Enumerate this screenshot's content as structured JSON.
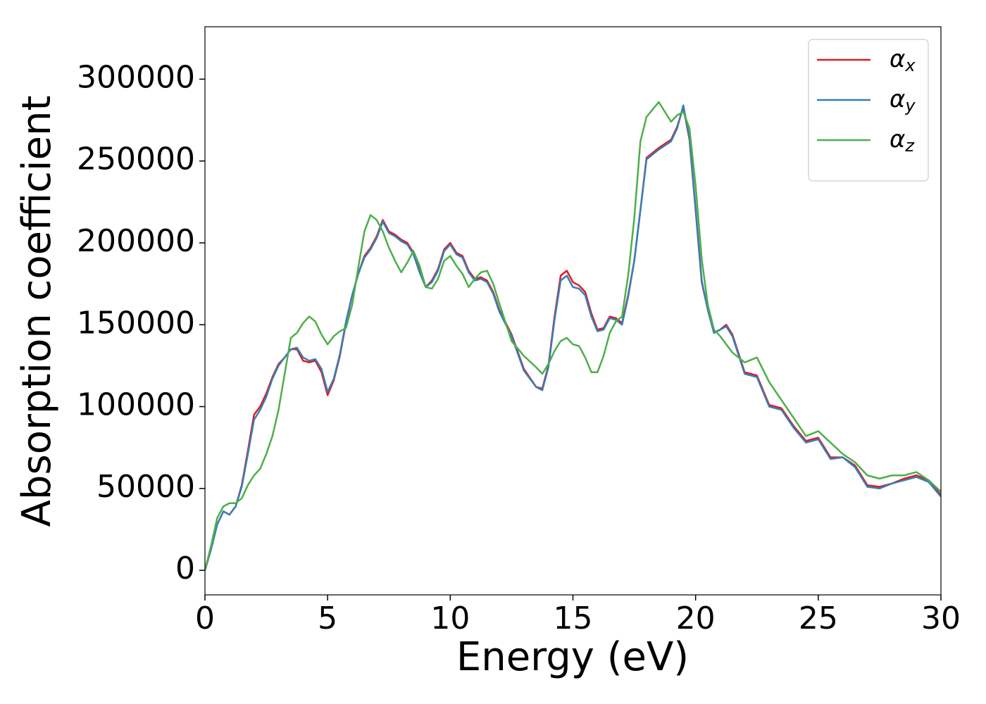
{
  "chart_data": {
    "type": "line",
    "xlabel": "Energy (eV)",
    "ylabel": "Absorption coefficient",
    "xlim": [
      0,
      30
    ],
    "ylim": [
      -15000,
      332000
    ],
    "xticks": [
      0,
      5,
      10,
      15,
      20,
      25,
      30
    ],
    "yticks": [
      0,
      50000,
      100000,
      150000,
      200000,
      250000,
      300000
    ],
    "grid": false,
    "legend": "upper right",
    "x": [
      0,
      0.25,
      0.5,
      0.75,
      1.0,
      1.25,
      1.5,
      1.75,
      2.0,
      2.25,
      2.5,
      2.75,
      3.0,
      3.25,
      3.5,
      3.75,
      4.0,
      4.25,
      4.5,
      4.75,
      5.0,
      5.25,
      5.5,
      5.75,
      6.0,
      6.25,
      6.5,
      6.75,
      7.0,
      7.25,
      7.5,
      7.75,
      8.0,
      8.25,
      8.5,
      8.75,
      9.0,
      9.25,
      9.5,
      9.75,
      10.0,
      10.25,
      10.5,
      10.75,
      11.0,
      11.25,
      11.5,
      11.75,
      12.0,
      12.5,
      13.0,
      13.5,
      13.75,
      14.0,
      14.25,
      14.5,
      14.75,
      15.0,
      15.25,
      15.5,
      15.75,
      16.0,
      16.25,
      16.5,
      16.75,
      17.0,
      17.25,
      17.5,
      17.75,
      18.0,
      18.5,
      19.0,
      19.25,
      19.5,
      19.75,
      20.0,
      20.25,
      20.5,
      20.75,
      21.0,
      21.25,
      21.5,
      22.0,
      22.5,
      23.0,
      23.5,
      24.0,
      24.5,
      25.0,
      25.5,
      26.0,
      26.5,
      27.0,
      27.5,
      28.0,
      28.5,
      29.0,
      29.5,
      30.0
    ],
    "series": [
      {
        "name": "αx",
        "color": "#e41a1c",
        "values": [
          0,
          13000,
          28000,
          36000,
          34000,
          39000,
          52000,
          73000,
          95000,
          100000,
          108000,
          118000,
          126000,
          130000,
          135000,
          135000,
          128000,
          127000,
          128000,
          121000,
          107000,
          116000,
          131000,
          151000,
          168000,
          181000,
          192000,
          197000,
          204000,
          214000,
          207000,
          205000,
          202000,
          200000,
          194000,
          183000,
          173000,
          177000,
          184000,
          196000,
          200000,
          194000,
          192000,
          183000,
          178000,
          179000,
          177000,
          170000,
          159000,
          144000,
          123000,
          112000,
          111000,
          125000,
          155000,
          180000,
          183000,
          176000,
          174000,
          170000,
          157000,
          147000,
          148000,
          155000,
          154000,
          151000,
          168000,
          189000,
          220000,
          252000,
          258000,
          263000,
          271000,
          283000,
          263000,
          220000,
          176000,
          159000,
          145000,
          147000,
          150000,
          144000,
          121000,
          119000,
          101000,
          99000,
          88000,
          79000,
          81000,
          69000,
          69000,
          64000,
          52000,
          51000,
          53000,
          56000,
          58000,
          55000,
          46000
        ]
      },
      {
        "name": "αy",
        "color": "#377eb8",
        "values": [
          0,
          13000,
          28000,
          36000,
          34000,
          39000,
          51000,
          71000,
          92000,
          98000,
          106000,
          117000,
          125000,
          130000,
          135000,
          136000,
          130000,
          128000,
          129000,
          123000,
          109000,
          117000,
          132000,
          152000,
          168000,
          181000,
          191000,
          196000,
          203000,
          213000,
          206000,
          204000,
          201000,
          199000,
          193000,
          182000,
          173000,
          176000,
          183000,
          195000,
          199000,
          193000,
          191000,
          182000,
          177000,
          178000,
          176000,
          169000,
          158000,
          143000,
          122000,
          112000,
          110000,
          124000,
          153000,
          177000,
          180000,
          173000,
          172000,
          168000,
          155000,
          146000,
          147000,
          154000,
          153000,
          150000,
          167000,
          189000,
          220000,
          251000,
          257000,
          262000,
          270000,
          284000,
          264000,
          221000,
          177000,
          159000,
          145000,
          147000,
          149000,
          143000,
          120000,
          118000,
          100000,
          98000,
          87000,
          78000,
          80000,
          68000,
          69000,
          63000,
          51000,
          50000,
          53000,
          55000,
          57000,
          54000,
          45000
        ]
      },
      {
        "name": "αz",
        "color": "#4daf4a",
        "values": [
          0,
          15000,
          32000,
          39000,
          41000,
          41000,
          44000,
          52000,
          58000,
          62000,
          71000,
          82000,
          98000,
          120000,
          142000,
          145000,
          151000,
          155000,
          152000,
          144000,
          138000,
          143000,
          146000,
          148000,
          162000,
          185000,
          207000,
          217000,
          214000,
          207000,
          197000,
          189000,
          182000,
          188000,
          195000,
          186000,
          173000,
          172000,
          178000,
          189000,
          192000,
          186000,
          181000,
          173000,
          178000,
          182000,
          183000,
          175000,
          163000,
          140000,
          131000,
          124000,
          120000,
          126000,
          134000,
          140000,
          142000,
          138000,
          137000,
          130000,
          121000,
          121000,
          131000,
          145000,
          152000,
          155000,
          180000,
          215000,
          262000,
          277000,
          286000,
          274000,
          278000,
          280000,
          270000,
          235000,
          190000,
          162000,
          147000,
          143000,
          138000,
          133000,
          127000,
          130000,
          115000,
          104000,
          93000,
          82000,
          85000,
          78000,
          71000,
          66000,
          58000,
          56000,
          58000,
          58000,
          60000,
          55000,
          48000
        ]
      }
    ]
  }
}
